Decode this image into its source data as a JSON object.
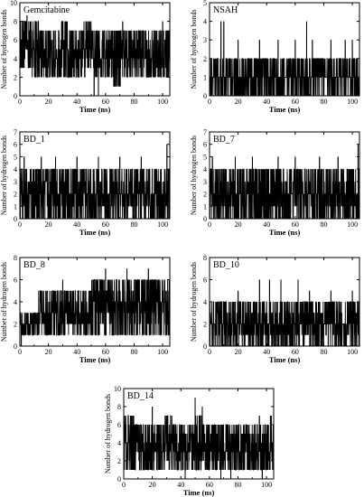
{
  "chart_data": [
    {
      "type": "line",
      "title": "Gemcitabine",
      "xlabel": "Time (ns)",
      "ylabel": "Number of hydrogen bonds",
      "xlim": [
        0,
        105
      ],
      "ylim": [
        0,
        10
      ],
      "xticks": [
        0,
        20,
        40,
        60,
        80,
        100
      ],
      "yticks": [
        0,
        2,
        4,
        6,
        8,
        10
      ],
      "band_min": [
        3,
        3,
        2,
        2,
        2,
        2,
        2,
        2,
        2,
        2,
        2,
        2,
        2,
        1,
        2,
        2,
        2,
        2,
        2,
        2,
        2
      ],
      "band_max": [
        8,
        8,
        8,
        7,
        7,
        7,
        8,
        7,
        7,
        8,
        7,
        7,
        7,
        7,
        7,
        7,
        7,
        7,
        7,
        7,
        7
      ],
      "center": [
        5,
        5,
        5,
        4,
        4,
        4,
        5,
        4,
        4,
        5,
        4,
        4,
        4,
        4,
        4,
        4,
        4,
        4,
        4,
        4,
        4
      ],
      "spikes": [
        [
          5,
          9
        ],
        [
          72,
          8
        ],
        [
          100,
          8
        ]
      ],
      "dips": [
        [
          52,
          0
        ],
        [
          55,
          0
        ]
      ]
    },
    {
      "type": "line",
      "title": "NSAH",
      "xlabel": "Time (ns)",
      "ylabel": "Number of hydrogen bonds",
      "xlim": [
        0,
        105
      ],
      "ylim": [
        0,
        5
      ],
      "xticks": [
        0,
        20,
        40,
        60,
        80,
        100
      ],
      "yticks": [
        0,
        1,
        2,
        3,
        4,
        5
      ],
      "band_min": [
        0,
        0,
        0,
        0,
        0,
        0,
        0,
        0,
        0,
        0,
        0,
        0,
        0,
        0,
        0,
        0,
        0,
        0,
        0,
        0,
        0
      ],
      "band_max": [
        2,
        2,
        2,
        2,
        2,
        2,
        2,
        2,
        2,
        2,
        2,
        2,
        2,
        2,
        2,
        2,
        2,
        2,
        2,
        2,
        2
      ],
      "center": [
        1,
        1,
        1,
        1,
        1,
        1,
        1,
        1,
        1,
        1,
        1,
        1,
        1,
        1,
        1,
        1,
        1,
        1,
        1,
        1,
        1
      ],
      "spikes": [
        [
          8,
          4
        ],
        [
          10,
          4
        ],
        [
          20,
          3
        ],
        [
          35,
          3
        ],
        [
          48,
          3
        ],
        [
          60,
          3
        ],
        [
          68,
          4
        ],
        [
          72,
          3
        ],
        [
          85,
          3
        ],
        [
          95,
          3
        ],
        [
          100,
          3
        ]
      ],
      "dips": []
    },
    {
      "type": "line",
      "title": "BD_1",
      "xlabel": "Time (ns)",
      "ylabel": "Number of hydrogen bonds",
      "xlim": [
        0,
        105
      ],
      "ylim": [
        0,
        7
      ],
      "xticks": [
        0,
        20,
        40,
        60,
        80,
        100
      ],
      "yticks": [
        0,
        1,
        2,
        3,
        4,
        5,
        6,
        7
      ],
      "band_min": [
        0,
        0,
        0,
        0,
        0,
        0,
        0,
        0,
        0,
        0,
        0,
        0,
        0,
        0,
        0,
        0,
        0,
        0,
        0,
        0,
        0
      ],
      "band_max": [
        4,
        4,
        4,
        4,
        4,
        4,
        4,
        4,
        4,
        4,
        4,
        4,
        4,
        4,
        4,
        4,
        4,
        4,
        4,
        4,
        4
      ],
      "center": [
        2,
        2,
        2,
        2,
        2,
        2,
        2,
        2,
        2,
        2,
        2,
        2,
        2,
        2,
        2,
        2,
        2,
        2,
        2,
        2,
        2
      ],
      "spikes": [
        [
          3,
          5
        ],
        [
          15,
          5
        ],
        [
          25,
          5
        ],
        [
          40,
          5
        ],
        [
          55,
          5
        ],
        [
          70,
          5
        ],
        [
          85,
          5
        ],
        [
          103,
          6
        ]
      ],
      "dips": []
    },
    {
      "type": "line",
      "title": "BD_7",
      "xlabel": "Time (ns)",
      "ylabel": "Number of hydrogen bonds",
      "xlim": [
        0,
        105
      ],
      "ylim": [
        0,
        7
      ],
      "xticks": [
        0,
        20,
        40,
        60,
        80,
        100
      ],
      "yticks": [
        0,
        1,
        2,
        3,
        4,
        5,
        6,
        7
      ],
      "band_min": [
        0,
        0,
        0,
        0,
        0,
        0,
        0,
        0,
        0,
        0,
        0,
        0,
        0,
        0,
        0,
        0,
        0,
        0,
        0,
        0,
        0
      ],
      "band_max": [
        4,
        4,
        4,
        4,
        4,
        4,
        4,
        4,
        4,
        4,
        4,
        4,
        4,
        4,
        4,
        4,
        4,
        4,
        4,
        4,
        4
      ],
      "center": [
        2,
        2,
        2,
        2,
        2,
        2,
        2,
        2,
        2,
        2,
        2,
        2,
        2,
        2,
        2,
        2,
        2,
        2,
        2,
        2,
        2
      ],
      "spikes": [
        [
          2,
          5
        ],
        [
          18,
          5
        ],
        [
          30,
          5
        ],
        [
          48,
          5
        ],
        [
          60,
          5
        ],
        [
          77,
          5
        ],
        [
          90,
          5
        ],
        [
          104,
          6
        ]
      ],
      "dips": []
    },
    {
      "type": "line",
      "title": "BD_8",
      "xlabel": "Time (ns)",
      "ylabel": "Number of hydrogen bonds",
      "xlim": [
        0,
        105
      ],
      "ylim": [
        0,
        8
      ],
      "xticks": [
        0,
        20,
        40,
        60,
        80,
        100
      ],
      "yticks": [
        0,
        2,
        4,
        6,
        8
      ],
      "band_min": [
        1,
        1,
        1,
        1,
        1,
        1,
        1,
        1,
        1,
        1,
        1,
        1,
        1,
        1,
        1,
        1,
        1,
        1,
        1,
        1,
        1
      ],
      "band_max": [
        3,
        3,
        3,
        5,
        5,
        5,
        5,
        5,
        5,
        5,
        6,
        6,
        6,
        6,
        6,
        6,
        6,
        6,
        6,
        6,
        6
      ],
      "center": [
        2,
        2,
        2,
        3,
        3,
        3,
        3,
        3,
        3,
        3,
        4,
        4,
        4,
        4,
        4,
        4,
        4,
        4,
        4,
        4,
        4
      ],
      "spikes": [
        [
          30,
          6
        ],
        [
          60,
          7
        ],
        [
          75,
          7
        ],
        [
          90,
          7
        ]
      ],
      "dips": [
        [
          1,
          0
        ]
      ]
    },
    {
      "type": "line",
      "title": "BD_10",
      "xlabel": "Time (ns)",
      "ylabel": "Number of hydrogen bonds",
      "xlim": [
        0,
        105
      ],
      "ylim": [
        0,
        8
      ],
      "xticks": [
        0,
        20,
        40,
        60,
        80,
        100
      ],
      "yticks": [
        0,
        2,
        4,
        6,
        8
      ],
      "band_min": [
        0,
        0,
        0,
        0,
        0,
        0,
        0,
        0,
        0,
        0,
        0,
        0,
        0,
        0,
        0,
        0,
        0,
        0,
        0,
        0,
        0
      ],
      "band_max": [
        4,
        4,
        4,
        4,
        4,
        4,
        4,
        4,
        4,
        4,
        4,
        4,
        4,
        4,
        4,
        4,
        4,
        4,
        4,
        4,
        4
      ],
      "center": [
        2,
        2,
        2,
        2,
        2,
        2,
        2,
        2,
        2,
        2,
        2,
        2,
        2,
        2,
        2,
        2,
        2,
        2,
        2,
        2,
        2
      ],
      "spikes": [
        [
          20,
          5
        ],
        [
          35,
          6
        ],
        [
          42,
          6
        ],
        [
          50,
          6
        ],
        [
          62,
          6
        ],
        [
          70,
          5
        ],
        [
          85,
          5
        ],
        [
          100,
          5
        ]
      ],
      "dips": []
    },
    {
      "type": "line",
      "title": "BD_14",
      "xlabel": "Time (ns)",
      "ylabel": "Number of hydrogen bonds",
      "xlim": [
        0,
        105
      ],
      "ylim": [
        0,
        10
      ],
      "xticks": [
        0,
        20,
        40,
        60,
        80,
        100
      ],
      "yticks": [
        0,
        2,
        4,
        6,
        8,
        10
      ],
      "band_min": [
        1,
        1,
        1,
        1,
        1,
        1,
        1,
        1,
        1,
        1,
        1,
        1,
        1,
        1,
        1,
        1,
        1,
        1,
        1,
        1,
        1
      ],
      "band_max": [
        7,
        7,
        6,
        6,
        6,
        6,
        7,
        6,
        6,
        6,
        7,
        6,
        6,
        6,
        6,
        6,
        6,
        6,
        6,
        6,
        7
      ],
      "center": [
        4,
        4,
        3,
        3,
        3,
        3,
        4,
        3,
        3,
        3,
        4,
        3,
        3,
        3,
        3,
        3,
        3,
        3,
        3,
        3,
        4
      ],
      "spikes": [
        [
          20,
          8
        ],
        [
          50,
          9
        ],
        [
          55,
          8
        ],
        [
          95,
          7
        ]
      ],
      "dips": [
        [
          43,
          0
        ],
        [
          68,
          0
        ],
        [
          75,
          0
        ],
        [
          97,
          0
        ]
      ]
    }
  ]
}
